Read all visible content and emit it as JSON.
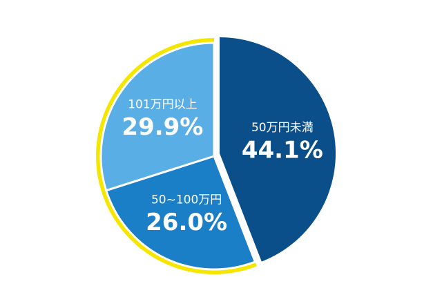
{
  "chart_data": {
    "type": "pie",
    "categories": [
      "50万円未満",
      "50~100万円",
      "101万円以上"
    ],
    "values": [
      44.1,
      26.0,
      29.9
    ],
    "value_labels": [
      "44.1%",
      "26.0%",
      "29.9%"
    ],
    "colors": [
      "#0b4f8a",
      "#1a7fc7",
      "#5aaee6"
    ],
    "highlight_color": "#f5e600"
  }
}
